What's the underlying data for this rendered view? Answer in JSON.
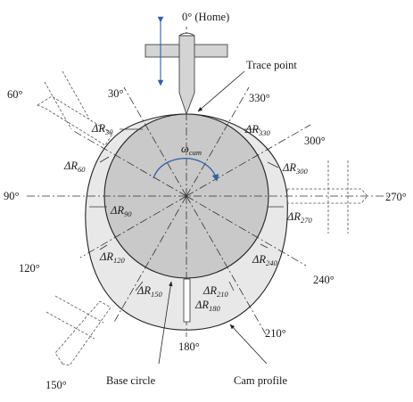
{
  "labels": {
    "home": "0° (Home)",
    "trace_point": "Trace point",
    "omega": "ω",
    "omega_sub": "cam",
    "base_circle": "Base circle",
    "cam_profile": "Cam profile"
  },
  "angles": {
    "a30": "30°",
    "a60": "60°",
    "a90": "90°",
    "a120": "120°",
    "a150": "150°",
    "a180": "180°",
    "a210": "210°",
    "a240": "240°",
    "a270": "270°",
    "a300": "300°",
    "a330": "330°"
  },
  "delta": {
    "sym": "ΔR",
    "s30": "30",
    "s60": "60",
    "s90": "90",
    "s120": "120",
    "s150": "150",
    "s180": "180",
    "s210": "210",
    "s240": "240",
    "s270": "270",
    "s300": "300",
    "s330": "330"
  },
  "colors": {
    "profile_fill": "#e8e8e8",
    "base_fill": "#c9c9c9",
    "arrow_blue": "#2f5fa8",
    "line": "#222222"
  }
}
